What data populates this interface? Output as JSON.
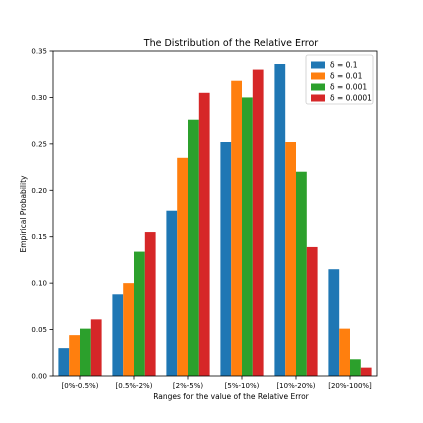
{
  "chart_data": {
    "type": "bar",
    "title": "The Distribution of the Relative Error",
    "xlabel": "Ranges for the value of the Relative Error",
    "ylabel": "Empirical Probability",
    "categories": [
      "[0%-0.5%)",
      "[0.5%-2%)",
      "[2%-5%)",
      "[5%-10%)",
      "[10%-20%)",
      "[20%-100%]"
    ],
    "ylim": [
      0,
      0.35
    ],
    "yticks": [
      0.0,
      0.05,
      0.1,
      0.15,
      0.2,
      0.25,
      0.3,
      0.35
    ],
    "ytick_labels": [
      "0.00",
      "0.05",
      "0.10",
      "0.15",
      "0.20",
      "0.25",
      "0.30",
      "0.35"
    ],
    "grid": false,
    "legend_position": "top-right",
    "series": [
      {
        "name": "δ = 0.1",
        "color": "#1f77b4",
        "values": [
          0.03,
          0.088,
          0.178,
          0.252,
          0.336,
          0.115
        ]
      },
      {
        "name": "δ = 0.01",
        "color": "#ff7f0e",
        "values": [
          0.044,
          0.1,
          0.235,
          0.318,
          0.252,
          0.051
        ]
      },
      {
        "name": "δ = 0.001",
        "color": "#2ca02c",
        "values": [
          0.051,
          0.134,
          0.276,
          0.3,
          0.22,
          0.018
        ]
      },
      {
        "name": "δ = 0.0001",
        "color": "#d62728",
        "values": [
          0.061,
          0.155,
          0.305,
          0.33,
          0.139,
          0.009
        ]
      }
    ]
  }
}
